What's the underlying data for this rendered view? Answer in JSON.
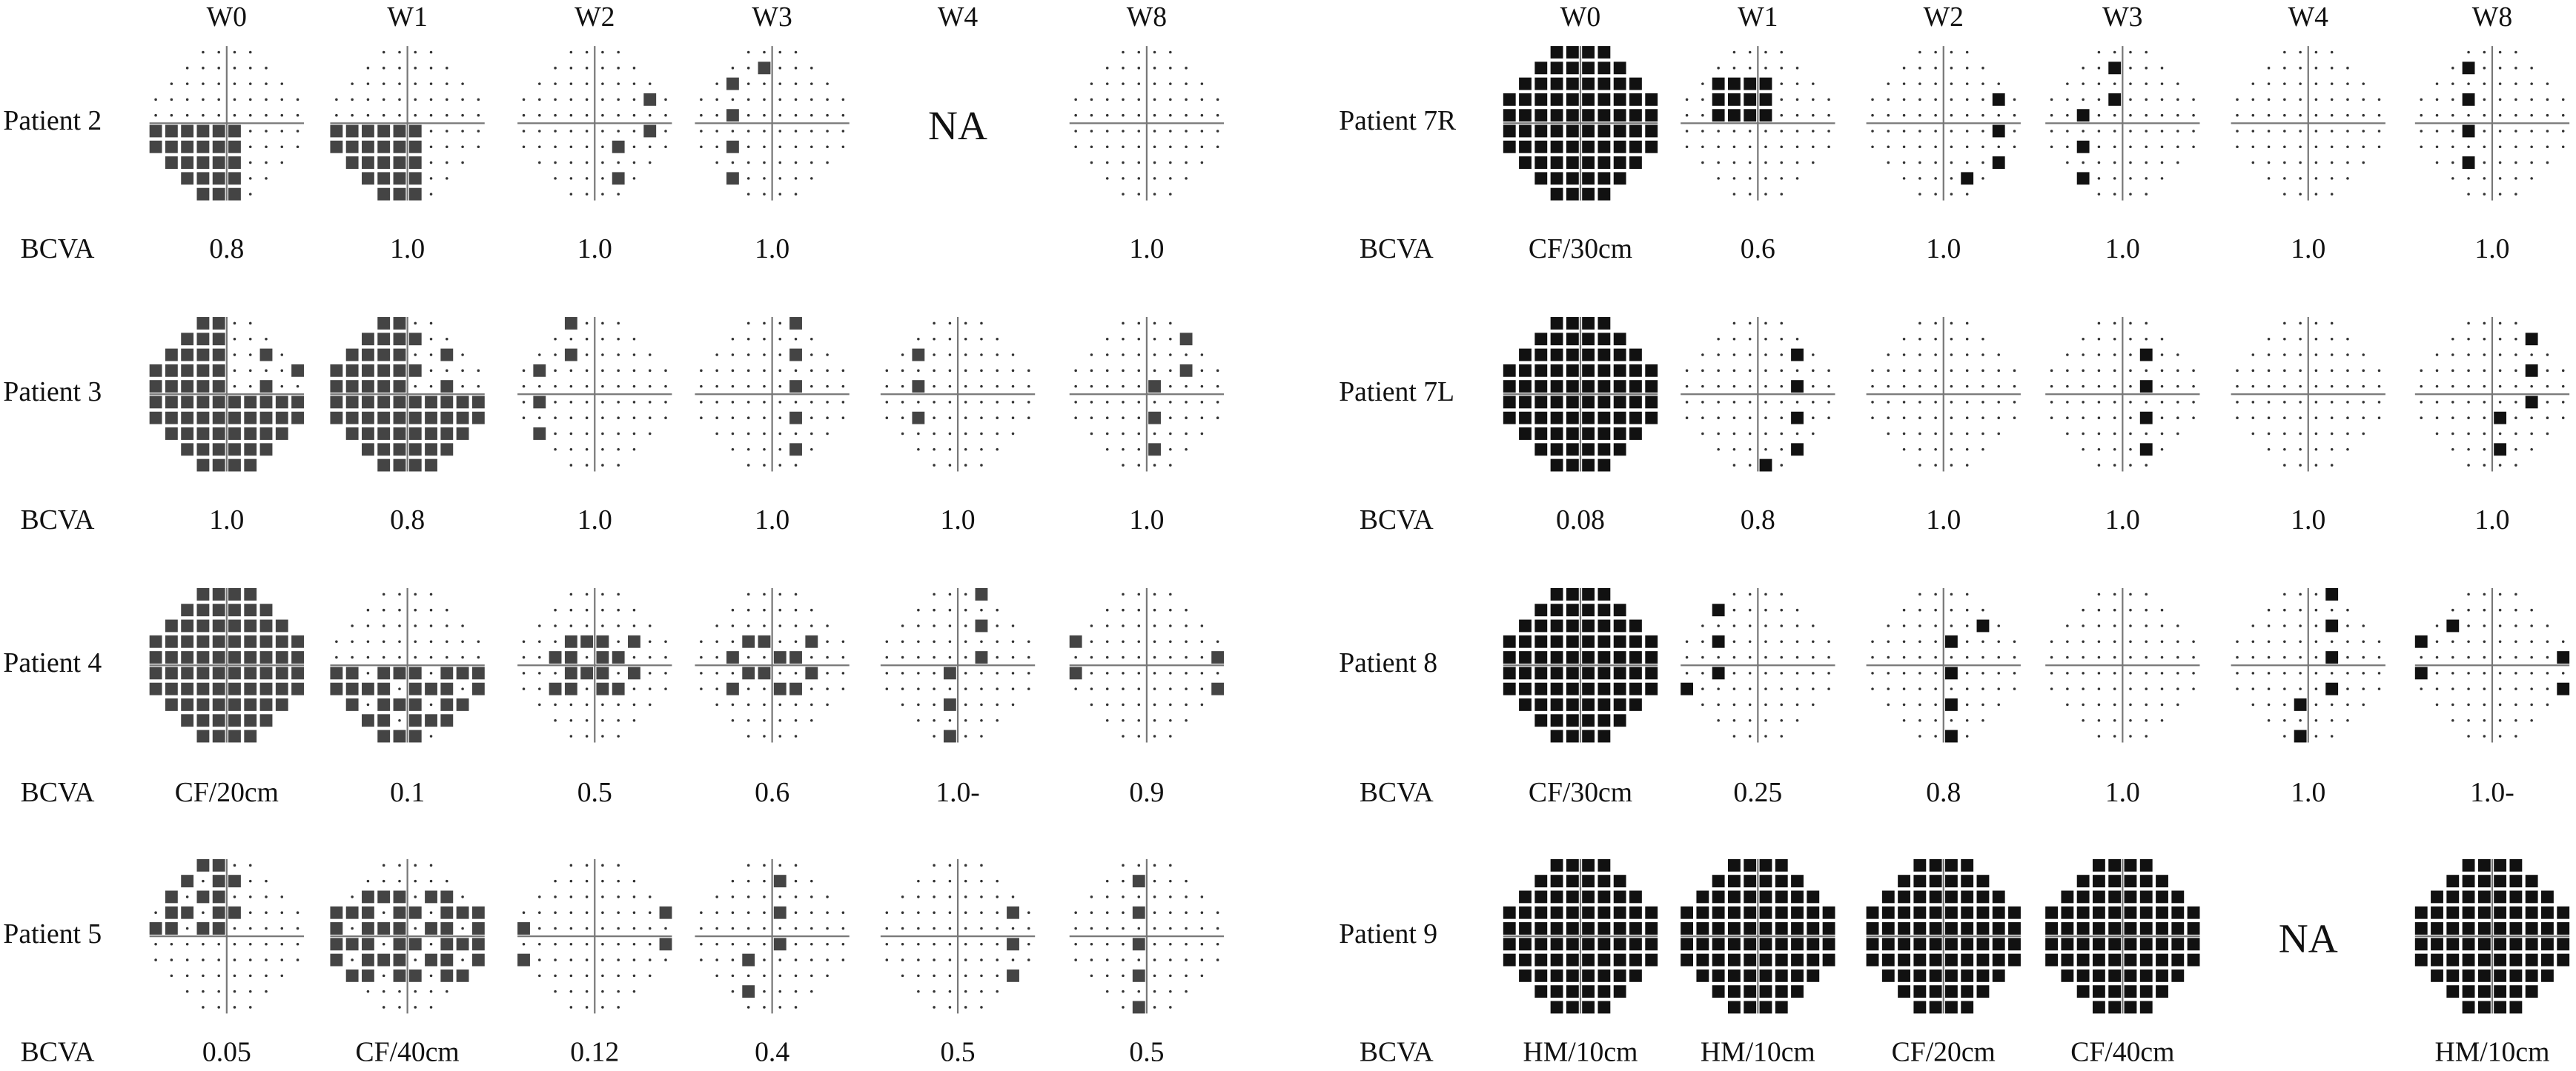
{
  "panels": [
    {
      "columns": [
        "W0",
        "W1",
        "W2",
        "W3",
        "W4",
        "W8"
      ],
      "rows": [
        {
          "label": "Patient 2",
          "cells": [
            null,
            null,
            null,
            null,
            "NA",
            null
          ],
          "bcva_label": "BCVA",
          "bcva": [
            "0.8",
            "1.0",
            "1.0",
            "1.0",
            null,
            "1.0"
          ]
        },
        {
          "label": "Patient 3",
          "bcva_label": "BCVA",
          "bcva": [
            "1.0",
            "0.8",
            "1.0",
            "1.0",
            "1.0",
            "1.0"
          ]
        },
        {
          "label": "Patient 4",
          "bcva_label": "BCVA",
          "bcva": [
            "CF/20cm",
            "0.1",
            "0.5",
            "0.6",
            "1.0-",
            "0.9"
          ]
        },
        {
          "label": "Patient 5",
          "bcva_label": "BCVA",
          "bcva": [
            "0.05",
            "CF/40cm",
            "0.12",
            "0.4",
            "0.5",
            "0.5"
          ]
        }
      ]
    },
    {
      "columns": [
        "W0",
        "W1",
        "W2",
        "W3",
        "W4",
        "W8"
      ],
      "rows": [
        {
          "label": "Patient 7R",
          "bcva_label": "BCVA",
          "bcva": [
            "CF/30cm",
            "0.6",
            "1.0",
            "1.0",
            "1.0",
            "1.0"
          ]
        },
        {
          "label": "Patient 7L",
          "bcva_label": "BCVA",
          "bcva": [
            "0.08",
            "0.8",
            "1.0",
            "1.0",
            "1.0",
            "1.0"
          ]
        },
        {
          "label": "Patient 8",
          "bcva_label": "BCVA",
          "bcva": [
            "CF/30cm",
            "0.25",
            "0.8",
            "1.0",
            "1.0",
            "1.0-"
          ]
        },
        {
          "label": "Patient 9",
          "cells": [
            null,
            null,
            null,
            null,
            "NA",
            null
          ],
          "bcva_label": "BCVA",
          "bcva": [
            "HM/10cm",
            "HM/10cm",
            "CF/20cm",
            "CF/40cm",
            null,
            "HM/10cm"
          ]
        }
      ]
    }
  ]
}
